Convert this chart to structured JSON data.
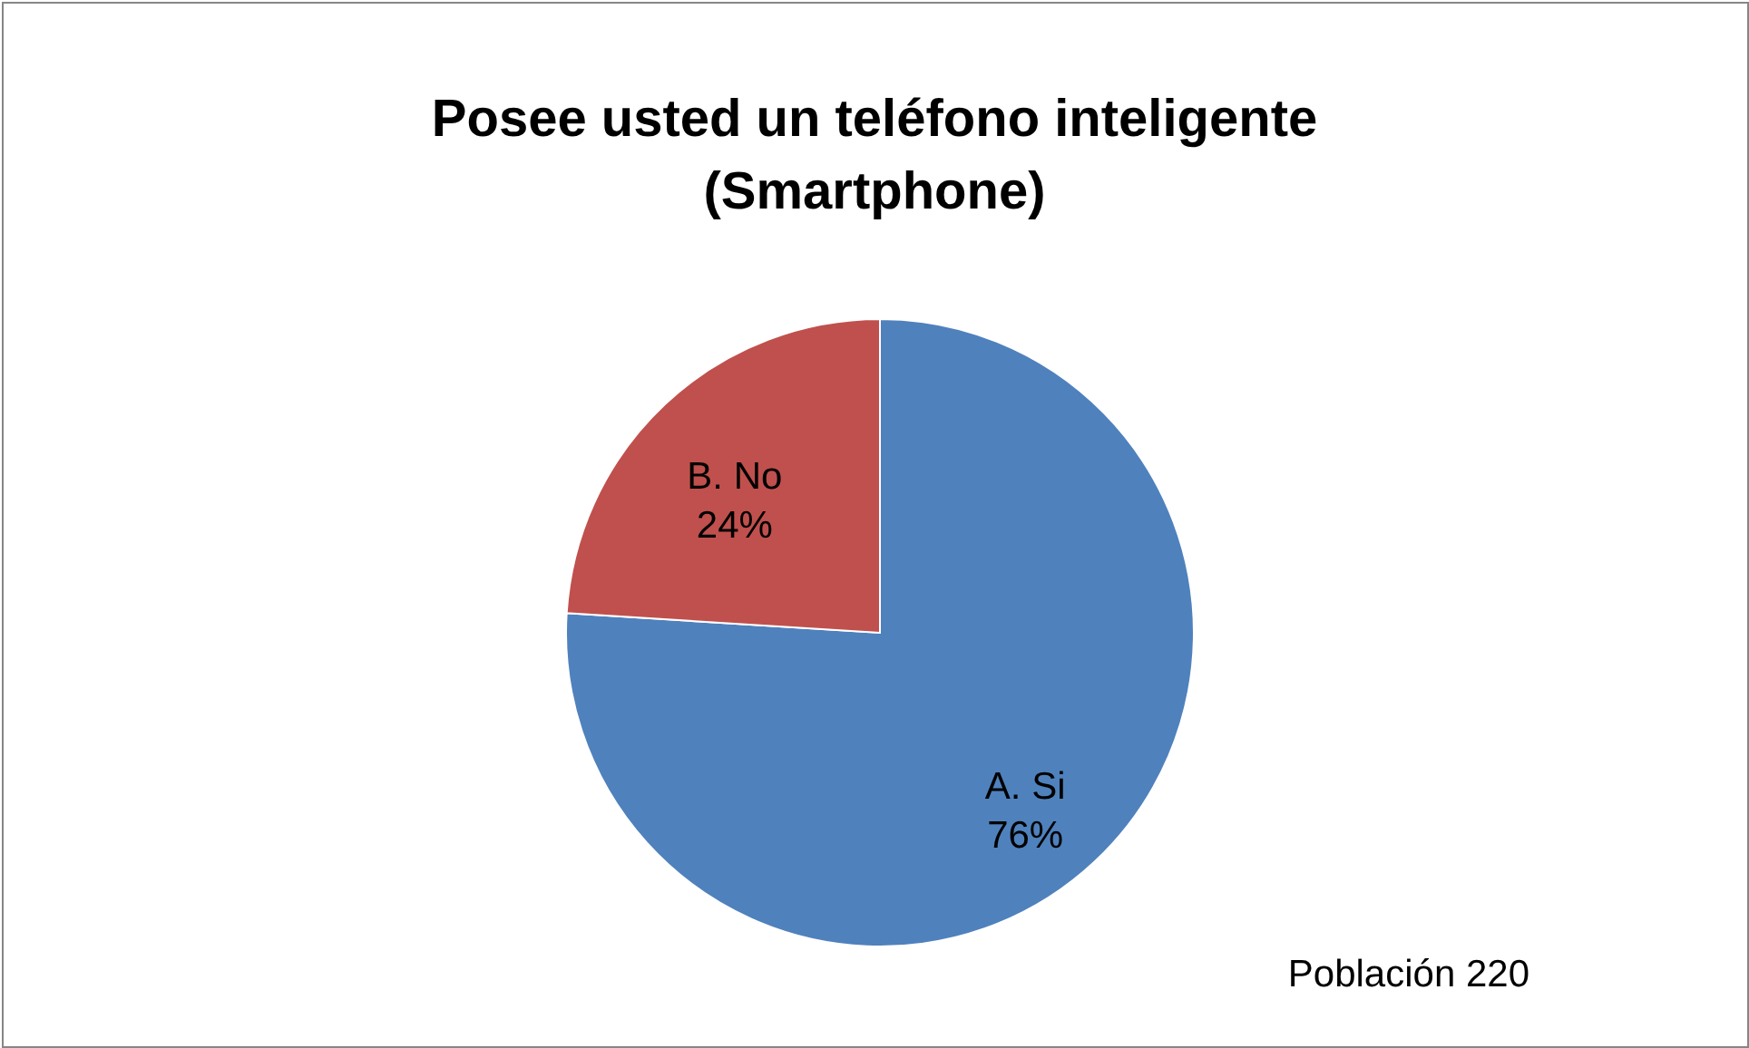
{
  "chart_data": {
    "type": "pie",
    "title": "Posee usted un teléfono inteligente\n(Smartphone)",
    "categories": [
      "A. Si",
      "B. No"
    ],
    "values": [
      76,
      24
    ],
    "value_labels": [
      "76%",
      "24%"
    ],
    "colors": [
      "#4f81bd",
      "#c0504d"
    ],
    "legend": false,
    "annotations": [
      "Población 220"
    ]
  }
}
